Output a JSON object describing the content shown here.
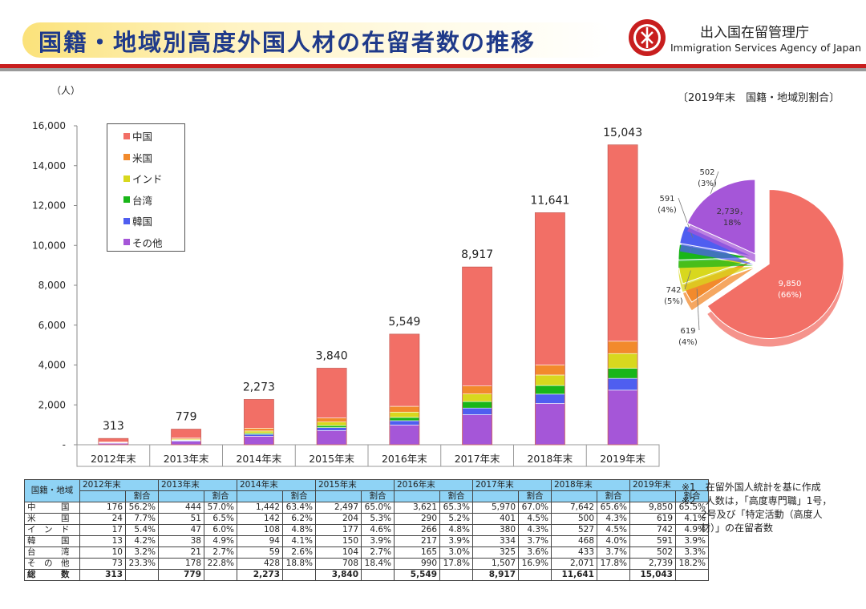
{
  "header": {
    "title": "国籍・地域別高度外国人材の在留者数の推移",
    "agency_ja": "出入国在留管理庁",
    "agency_en": "Immigration Services Agency of Japan"
  },
  "chart_data": [
    {
      "type": "bar",
      "stacked": true,
      "unit_label": "（人）",
      "categories": [
        "2012年末",
        "2013年末",
        "2014年末",
        "2015年末",
        "2016年末",
        "2017年末",
        "2018年末",
        "2019年末"
      ],
      "series": [
        {
          "name": "中国",
          "color": "#f26f66",
          "values": [
            176,
            444,
            1442,
            2497,
            3621,
            5970,
            7642,
            9850
          ]
        },
        {
          "name": "米国",
          "color": "#f28a2c",
          "values": [
            24,
            51,
            142,
            204,
            290,
            401,
            500,
            619
          ]
        },
        {
          "name": "インド",
          "color": "#d8d81e",
          "values": [
            17,
            47,
            108,
            177,
            266,
            380,
            527,
            742
          ]
        },
        {
          "name": "台湾",
          "color": "#19b619",
          "values": [
            10,
            21,
            59,
            104,
            165,
            325,
            433,
            502
          ]
        },
        {
          "name": "韓国",
          "color": "#4f5ef0",
          "values": [
            13,
            38,
            94,
            150,
            217,
            334,
            468,
            591
          ]
        },
        {
          "name": "その他",
          "color": "#a556d8",
          "values": [
            73,
            178,
            428,
            708,
            990,
            1507,
            2071,
            2739
          ]
        }
      ],
      "stack_order_bottom_to_top": [
        "その他",
        "韓国",
        "台湾",
        "インド",
        "米国",
        "中国"
      ],
      "totals": [
        "313",
        "779",
        "2,273",
        "3,840",
        "5,549",
        "8,917",
        "11,641",
        "15,043"
      ],
      "ylim": [
        0,
        16000
      ],
      "yticks": [
        "-",
        "2,000",
        "4,000",
        "6,000",
        "8,000",
        "10,000",
        "12,000",
        "14,000",
        "16,000"
      ],
      "grid": false,
      "legend_position": "top-left"
    },
    {
      "type": "pie",
      "title": "〔2019年末　国籍・地域別割合〕",
      "slices": [
        {
          "name": "中国",
          "value": 9850,
          "label": "9,850",
          "pct": "(66%)",
          "color": "#f26f66"
        },
        {
          "name": "米国",
          "value": 619,
          "label": "619",
          "pct": "(4%)",
          "color": "#f28a2c"
        },
        {
          "name": "インド",
          "value": 742,
          "label": "742",
          "pct": "(5%)",
          "color": "#d8d81e"
        },
        {
          "name": "台湾",
          "value": 502,
          "label": "502",
          "pct": "(3%)",
          "color": "#19b619"
        },
        {
          "name": "韓国",
          "value": 591,
          "label": "591",
          "pct": "(4%)",
          "color": "#4f5ef0"
        },
        {
          "name": "その他",
          "value": 2739,
          "label": "2,739，",
          "pct": "18%",
          "color": "#a556d8"
        }
      ]
    }
  ],
  "table": {
    "region_header": "国籍・地域",
    "years": [
      "2012年末",
      "2013年末",
      "2014年末",
      "2015年末",
      "2016年末",
      "2017年末",
      "2018年末",
      "2019年末"
    ],
    "pct_header": "割合",
    "rows": [
      {
        "label": "中　　　国",
        "cells": [
          "176",
          "56.2%",
          "444",
          "57.0%",
          "1,442",
          "63.4%",
          "2,497",
          "65.0%",
          "3,621",
          "65.3%",
          "5,970",
          "67.0%",
          "7,642",
          "65.6%",
          "9,850",
          "65.5%"
        ]
      },
      {
        "label": "米　　　国",
        "cells": [
          "24",
          "7.7%",
          "51",
          "6.5%",
          "142",
          "6.2%",
          "204",
          "5.3%",
          "290",
          "5.2%",
          "401",
          "4.5%",
          "500",
          "4.3%",
          "619",
          "4.1%"
        ]
      },
      {
        "label": "イ　ン　ド",
        "cells": [
          "17",
          "5.4%",
          "47",
          "6.0%",
          "108",
          "4.8%",
          "177",
          "4.6%",
          "266",
          "4.8%",
          "380",
          "4.3%",
          "527",
          "4.5%",
          "742",
          "4.9%"
        ]
      },
      {
        "label": "韓　　　国",
        "cells": [
          "13",
          "4.2%",
          "38",
          "4.9%",
          "94",
          "4.1%",
          "150",
          "3.9%",
          "217",
          "3.9%",
          "334",
          "3.7%",
          "468",
          "4.0%",
          "591",
          "3.9%"
        ]
      },
      {
        "label": "台　　　湾",
        "cells": [
          "10",
          "3.2%",
          "21",
          "2.7%",
          "59",
          "2.6%",
          "104",
          "2.7%",
          "165",
          "3.0%",
          "325",
          "3.6%",
          "433",
          "3.7%",
          "502",
          "3.3%"
        ]
      },
      {
        "label": "そ　の　他",
        "cells": [
          "73",
          "23.3%",
          "178",
          "22.8%",
          "428",
          "18.8%",
          "708",
          "18.4%",
          "990",
          "17.8%",
          "1,507",
          "16.9%",
          "2,071",
          "17.8%",
          "2,739",
          "18.2%"
        ]
      }
    ],
    "total_row": {
      "label": "総　　　数",
      "cells": [
        "313",
        "",
        "779",
        "",
        "2,273",
        "",
        "3,840",
        "",
        "5,549",
        "",
        "8,917",
        "",
        "11,641",
        "",
        "15,043",
        ""
      ]
    }
  },
  "notes": [
    "※1　在留外国人統計を基に作成",
    "※2　人数は，「高度専門職」1号，",
    "　　2号及び「特定活動（高度人",
    "　　材）」の在留者数"
  ]
}
